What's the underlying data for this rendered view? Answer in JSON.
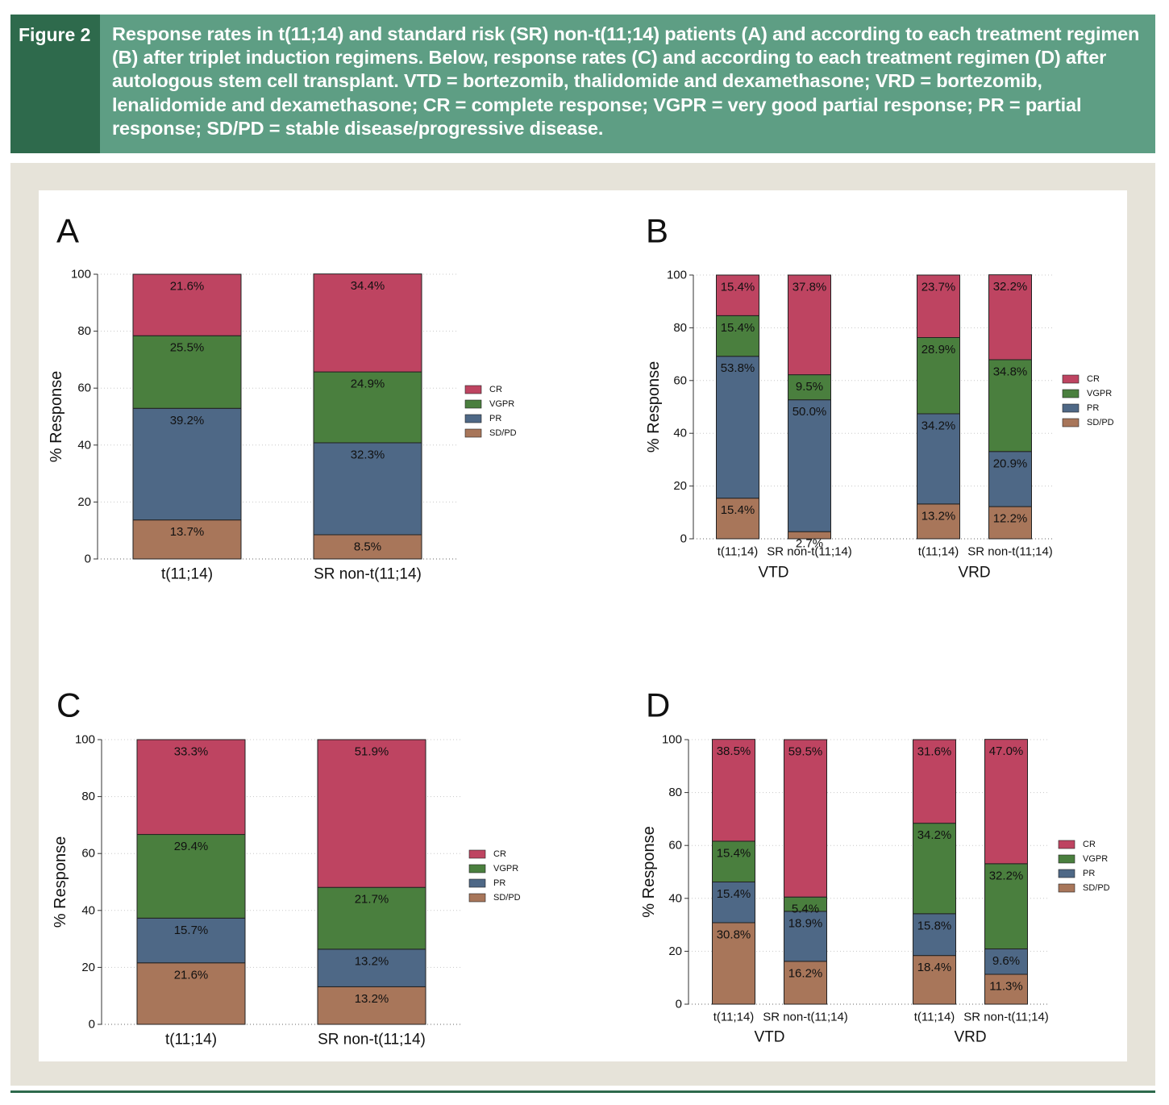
{
  "header": {
    "figure_label": "Figure 2",
    "caption": "Response rates in t(11;14) and standard risk (SR) non-t(11;14) patients (A) and according to each treatment regimen (B) after triplet induction regimens. Below, response rates (C) and according to each treatment regimen (D) after autologous stem cell transplant. VTD = bortezomib, thalidomide and dexamethasone; VRD = bortezomib, lenalidomide and dexamethasone; CR = complete response; VGPR = very good partial response; PR = partial response; SD/PD = stable disease/progressive disease."
  },
  "colors": {
    "CR": "#be4461",
    "VGPR": "#4a7f3e",
    "PR": "#4e6886",
    "SD/PD": "#a8765a",
    "header_bg": "#5e9e84",
    "label_bg": "#2e6a4c",
    "panel_bg": "#e6e3d9"
  },
  "chart_data": [
    {
      "panel": "A",
      "type": "bar",
      "stacked": true,
      "ylabel": "% Response",
      "ylim": [
        0,
        100
      ],
      "yticks": [
        0,
        20,
        40,
        60,
        80,
        100
      ],
      "legend": [
        "CR",
        "VGPR",
        "PR",
        "SD/PD"
      ],
      "legend_position": "right",
      "grid": "horizontal dotted",
      "groups": [
        {
          "name": "",
          "bars": [
            {
              "label": "t(11;14)",
              "values": {
                "SD/PD": 13.7,
                "PR": 39.2,
                "VGPR": 25.5,
                "CR": 21.6
              },
              "data_labels": {
                "SD/PD": "13.7%",
                "PR": "39.2%",
                "VGPR": "25.5%",
                "CR": "21.6%"
              }
            },
            {
              "label": "SR non-t(11;14)",
              "values": {
                "SD/PD": 8.5,
                "PR": 32.3,
                "VGPR": 24.9,
                "CR": 34.4
              },
              "data_labels": {
                "SD/PD": "8.5%",
                "PR": "32.3%",
                "VGPR": "24.9%",
                "CR": "34.4%"
              }
            }
          ]
        }
      ]
    },
    {
      "panel": "B",
      "type": "bar",
      "stacked": true,
      "ylabel": "% Response",
      "ylim": [
        0,
        100
      ],
      "yticks": [
        0,
        20,
        40,
        60,
        80,
        100
      ],
      "legend": [
        "CR",
        "VGPR",
        "PR",
        "SD/PD"
      ],
      "legend_position": "right",
      "grid": "horizontal dotted",
      "groups": [
        {
          "name": "VTD",
          "bars": [
            {
              "label": "t(11;14)",
              "values": {
                "SD/PD": 15.4,
                "PR": 53.8,
                "VGPR": 15.4,
                "CR": 15.4
              },
              "data_labels": {
                "SD/PD": "15.4%",
                "PR": "53.8%",
                "VGPR": "15.4%",
                "CR": "15.4%"
              }
            },
            {
              "label": "SR non-t(11;14)",
              "values": {
                "SD/PD": 2.7,
                "PR": 50.0,
                "VGPR": 9.5,
                "CR": 37.8
              },
              "data_labels": {
                "SD/PD": "2.7%",
                "PR": "50.0%",
                "VGPR": "9.5%",
                "CR": "37.8%"
              }
            }
          ]
        },
        {
          "name": "VRD",
          "bars": [
            {
              "label": "t(11;14)",
              "values": {
                "SD/PD": 13.2,
                "PR": 34.2,
                "VGPR": 28.9,
                "CR": 23.7
              },
              "data_labels": {
                "SD/PD": "13.2%",
                "PR": "34.2%",
                "VGPR": "28.9%",
                "CR": "23.7%"
              }
            },
            {
              "label": "SR non-t(11;14)",
              "values": {
                "SD/PD": 12.2,
                "PR": 20.9,
                "VGPR": 34.8,
                "CR": 32.2
              },
              "data_labels": {
                "SD/PD": "12.2%",
                "PR": "20.9%",
                "VGPR": "34.8%",
                "CR": "32.2%"
              }
            }
          ]
        }
      ]
    },
    {
      "panel": "C",
      "type": "bar",
      "stacked": true,
      "ylabel": "% Response",
      "ylim": [
        0,
        100
      ],
      "yticks": [
        0,
        20,
        40,
        60,
        80,
        100
      ],
      "legend": [
        "CR",
        "VGPR",
        "PR",
        "SD/PD"
      ],
      "legend_position": "right",
      "grid": "horizontal dotted",
      "groups": [
        {
          "name": "",
          "bars": [
            {
              "label": "t(11;14)",
              "values": {
                "SD/PD": 21.6,
                "PR": 15.7,
                "VGPR": 29.4,
                "CR": 33.3
              },
              "data_labels": {
                "SD/PD": "21.6%",
                "PR": "15.7%",
                "VGPR": "29.4%",
                "CR": "33.3%"
              }
            },
            {
              "label": "SR non-t(11;14)",
              "values": {
                "SD/PD": 13.2,
                "PR": 13.2,
                "VGPR": 21.7,
                "CR": 51.9
              },
              "data_labels": {
                "SD/PD": "13.2%",
                "PR": "13.2%",
                "VGPR": "21.7%",
                "CR": "51.9%"
              }
            }
          ]
        }
      ]
    },
    {
      "panel": "D",
      "type": "bar",
      "stacked": true,
      "ylabel": "% Response",
      "ylim": [
        0,
        100
      ],
      "yticks": [
        0,
        20,
        40,
        60,
        80,
        100
      ],
      "legend": [
        "CR",
        "VGPR",
        "PR",
        "SD/PD"
      ],
      "legend_position": "right",
      "grid": "horizontal dotted",
      "groups": [
        {
          "name": "VTD",
          "bars": [
            {
              "label": "t(11;14)",
              "values": {
                "SD/PD": 30.8,
                "PR": 15.4,
                "VGPR": 15.4,
                "CR": 38.5
              },
              "data_labels": {
                "SD/PD": "30.8%",
                "PR": "15.4%",
                "VGPR": "15.4%",
                "CR": "38.5%"
              }
            },
            {
              "label": "SR non-t(11;14)",
              "values": {
                "SD/PD": 16.2,
                "PR": 18.9,
                "VGPR": 5.4,
                "CR": 59.5
              },
              "data_labels": {
                "SD/PD": "16.2%",
                "PR": "18.9%",
                "VGPR": "5.4%",
                "CR": "59.5%"
              }
            }
          ]
        },
        {
          "name": "VRD",
          "bars": [
            {
              "label": "t(11;14)",
              "values": {
                "SD/PD": 18.4,
                "PR": 15.8,
                "VGPR": 34.2,
                "CR": 31.6
              },
              "data_labels": {
                "SD/PD": "18.4%",
                "PR": "15.8%",
                "VGPR": "34.2%",
                "CR": "31.6%"
              }
            },
            {
              "label": "SR non-t(11;14)",
              "values": {
                "SD/PD": 11.3,
                "PR": 9.6,
                "VGPR": 32.2,
                "CR": 47.0
              },
              "data_labels": {
                "SD/PD": "11.3%",
                "PR": "9.6%",
                "VGPR": "32.2%",
                "CR": "47.0%"
              }
            }
          ]
        }
      ]
    }
  ]
}
